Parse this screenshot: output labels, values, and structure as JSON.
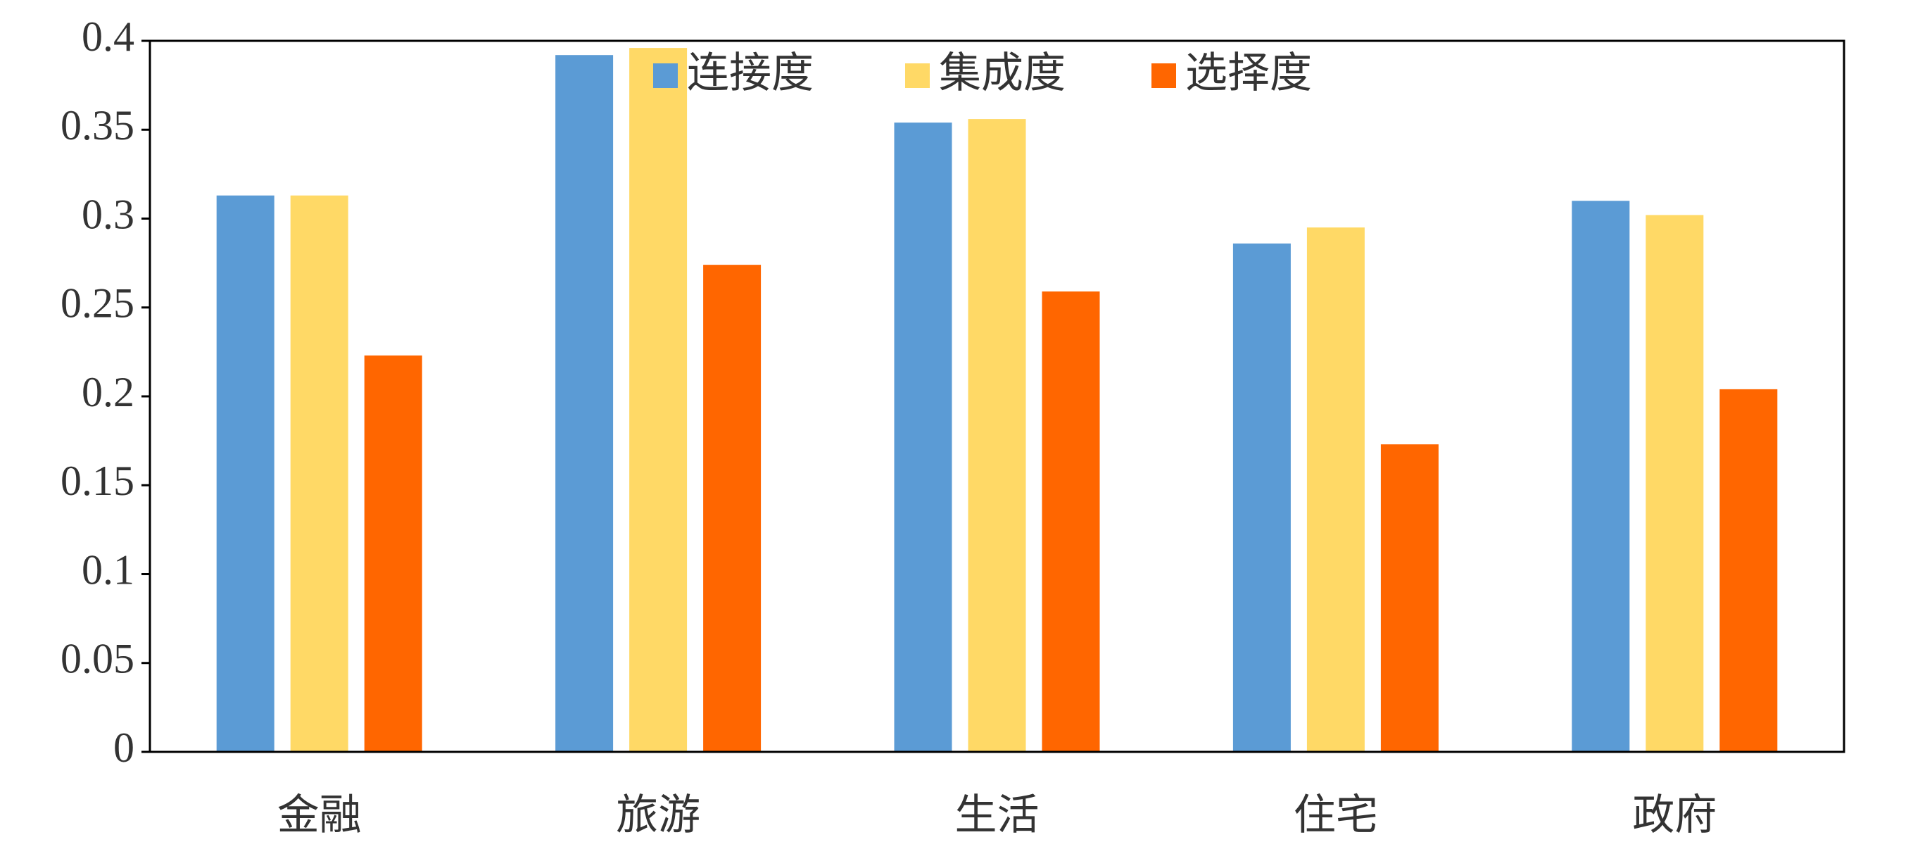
{
  "chart_data": {
    "type": "bar",
    "categories": [
      "金融",
      "旅游",
      "生活",
      "住宅",
      "政府"
    ],
    "series": [
      {
        "name": "连接度",
        "color": "#5b9bd5",
        "values": [
          0.313,
          0.392,
          0.354,
          0.286,
          0.31
        ]
      },
      {
        "name": "集成度",
        "color": "#ffd966",
        "values": [
          0.313,
          0.396,
          0.356,
          0.295,
          0.302
        ]
      },
      {
        "name": "选择度",
        "color": "#ff6600",
        "values": [
          0.223,
          0.274,
          0.259,
          0.173,
          0.204
        ]
      }
    ],
    "ylim": [
      0,
      0.4
    ],
    "yticks": [
      0,
      0.05,
      0.1,
      0.15,
      0.2,
      0.25,
      0.3,
      0.35,
      0.4
    ],
    "grid": false,
    "legend": "top"
  }
}
